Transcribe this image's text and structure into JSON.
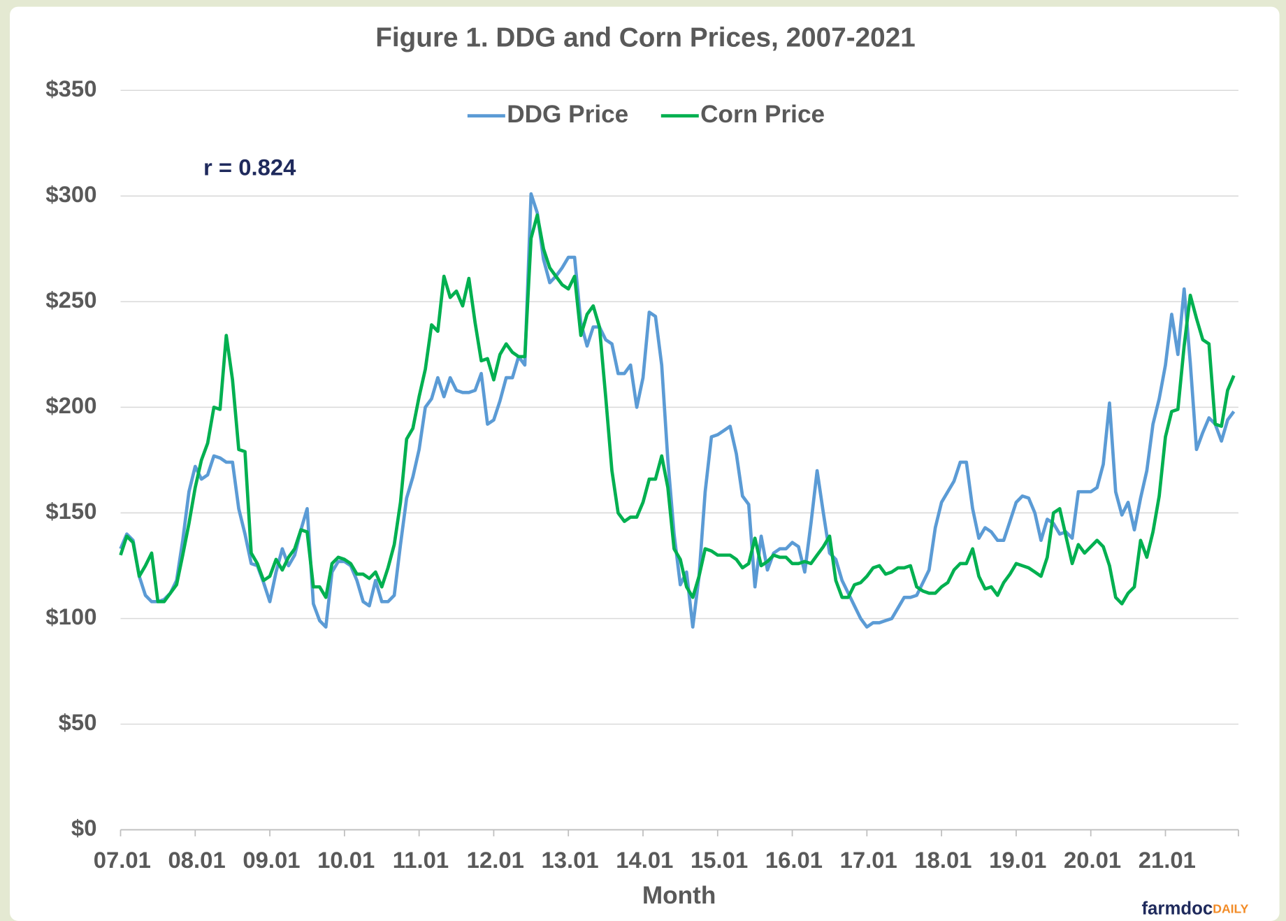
{
  "chart_data": {
    "type": "line",
    "title": "Figure  1. DDG and Corn Prices, 2007-2021",
    "x_label": "Month",
    "annotation": "r = 0.824",
    "logo": {
      "main": "farmdoc",
      "accent": "DAILY"
    },
    "legend": "top",
    "grid": true,
    "categories": [
      "07.01",
      null,
      null,
      null,
      null,
      null,
      null,
      null,
      null,
      null,
      null,
      null,
      "08.01",
      null,
      null,
      null,
      null,
      null,
      null,
      null,
      null,
      null,
      null,
      null,
      "09.01",
      null,
      null,
      null,
      null,
      null,
      null,
      null,
      null,
      null,
      null,
      null,
      "10.01",
      null,
      null,
      null,
      null,
      null,
      null,
      null,
      null,
      null,
      null,
      null,
      "11.01",
      null,
      null,
      null,
      null,
      null,
      null,
      null,
      null,
      null,
      null,
      null,
      "12.01",
      null,
      null,
      null,
      null,
      null,
      null,
      null,
      null,
      null,
      null,
      null,
      "13.01",
      null,
      null,
      null,
      null,
      null,
      null,
      null,
      null,
      null,
      null,
      null,
      "14.01",
      null,
      null,
      null,
      null,
      null,
      null,
      null,
      null,
      null,
      null,
      null,
      "15.01",
      null,
      null,
      null,
      null,
      null,
      null,
      null,
      null,
      null,
      null,
      null,
      "16.01",
      null,
      null,
      null,
      null,
      null,
      null,
      null,
      null,
      null,
      null,
      null,
      "17.01",
      null,
      null,
      null,
      null,
      null,
      null,
      null,
      null,
      null,
      null,
      null,
      "18.01",
      null,
      null,
      null,
      null,
      null,
      null,
      null,
      null,
      null,
      null,
      null,
      "19.01",
      null,
      null,
      null,
      null,
      null,
      null,
      null,
      null,
      null,
      null,
      null,
      "20.01",
      null,
      null,
      null,
      null,
      null,
      null,
      null,
      null,
      null,
      null,
      null,
      "21.01",
      null,
      null,
      null,
      null,
      null,
      null,
      null,
      null,
      null,
      null,
      null
    ],
    "series": [
      {
        "name": "DDG Price",
        "color": "#5b9bd5",
        "values": [
          133,
          140,
          137,
          120,
          111,
          108,
          108,
          109,
          112,
          118,
          137,
          160,
          172,
          166,
          168,
          177,
          176,
          174,
          174,
          152,
          140,
          126,
          125,
          117,
          108,
          122,
          133,
          125,
          130,
          142,
          152,
          107,
          99,
          96,
          122,
          127,
          127,
          125,
          118,
          108,
          106,
          118,
          108,
          108,
          111,
          135,
          157,
          167,
          180,
          200,
          204,
          214,
          205,
          214,
          208,
          207,
          207,
          208,
          216,
          192,
          194,
          203,
          214,
          214,
          224,
          220,
          301,
          292,
          270,
          259,
          262,
          266,
          271,
          271,
          240,
          229,
          238,
          238,
          232,
          230,
          216,
          216,
          220,
          200,
          214,
          245,
          243,
          220,
          175,
          140,
          116,
          122,
          96,
          120,
          160,
          186,
          187,
          189,
          191,
          178,
          158,
          154,
          115,
          139,
          123,
          131,
          133,
          133,
          136,
          134,
          122,
          145,
          170,
          150,
          131,
          128,
          118,
          112,
          106,
          100,
          96,
          98,
          98,
          99,
          100,
          105,
          110,
          110,
          111,
          117,
          123,
          143,
          155,
          160,
          165,
          174,
          174,
          152,
          138,
          143,
          141,
          137,
          137,
          146,
          155,
          158,
          157,
          150,
          137,
          147,
          145,
          140,
          141,
          138,
          160,
          160,
          160,
          162,
          173,
          202,
          160,
          149,
          155,
          142,
          157,
          170,
          192,
          204,
          220,
          244,
          225,
          256,
          221,
          180,
          188,
          195,
          192,
          184,
          194,
          198
        ]
      },
      {
        "name": "Corn Price",
        "color": "#00b050",
        "values": [
          130,
          139,
          136,
          120,
          125,
          131,
          108,
          108,
          112,
          116,
          130,
          145,
          162,
          175,
          183,
          200,
          199,
          234,
          213,
          180,
          179,
          131,
          126,
          118,
          120,
          128,
          123,
          129,
          133,
          142,
          141,
          115,
          115,
          110,
          126,
          129,
          128,
          126,
          121,
          121,
          119,
          122,
          115,
          124,
          135,
          155,
          185,
          190,
          205,
          218,
          239,
          236,
          262,
          252,
          255,
          248,
          261,
          240,
          222,
          223,
          213,
          225,
          230,
          226,
          224,
          224,
          280,
          291,
          275,
          266,
          262,
          258,
          256,
          262,
          234,
          244,
          248,
          238,
          205,
          170,
          150,
          146,
          148,
          148,
          155,
          166,
          166,
          177,
          162,
          133,
          128,
          115,
          110,
          120,
          133,
          132,
          130,
          130,
          130,
          128,
          124,
          126,
          138,
          125,
          127,
          130,
          129,
          129,
          126,
          126,
          127,
          126,
          130,
          134,
          139,
          118,
          110,
          110,
          116,
          117,
          120,
          124,
          125,
          121,
          122,
          124,
          124,
          125,
          115,
          113,
          112,
          112,
          115,
          117,
          123,
          126,
          126,
          133,
          120,
          114,
          115,
          111,
          117,
          121,
          126,
          125,
          124,
          122,
          120,
          129,
          150,
          152,
          139,
          126,
          135,
          131,
          134,
          137,
          134,
          125,
          110,
          107,
          112,
          115,
          137,
          129,
          141,
          158,
          186,
          198,
          199,
          229,
          253,
          242,
          232,
          230,
          192,
          191,
          208,
          215
        ]
      }
    ],
    "ylim": [
      0,
      350
    ],
    "yticks": [
      {
        "value": 0,
        "label": "$0"
      },
      {
        "value": 50,
        "label": "$50"
      },
      {
        "value": 100,
        "label": "$100"
      },
      {
        "value": 150,
        "label": "$150"
      },
      {
        "value": 200,
        "label": "$200"
      },
      {
        "value": 250,
        "label": "$250"
      },
      {
        "value": 300,
        "label": "$300"
      },
      {
        "value": 350,
        "label": "$350"
      }
    ]
  }
}
